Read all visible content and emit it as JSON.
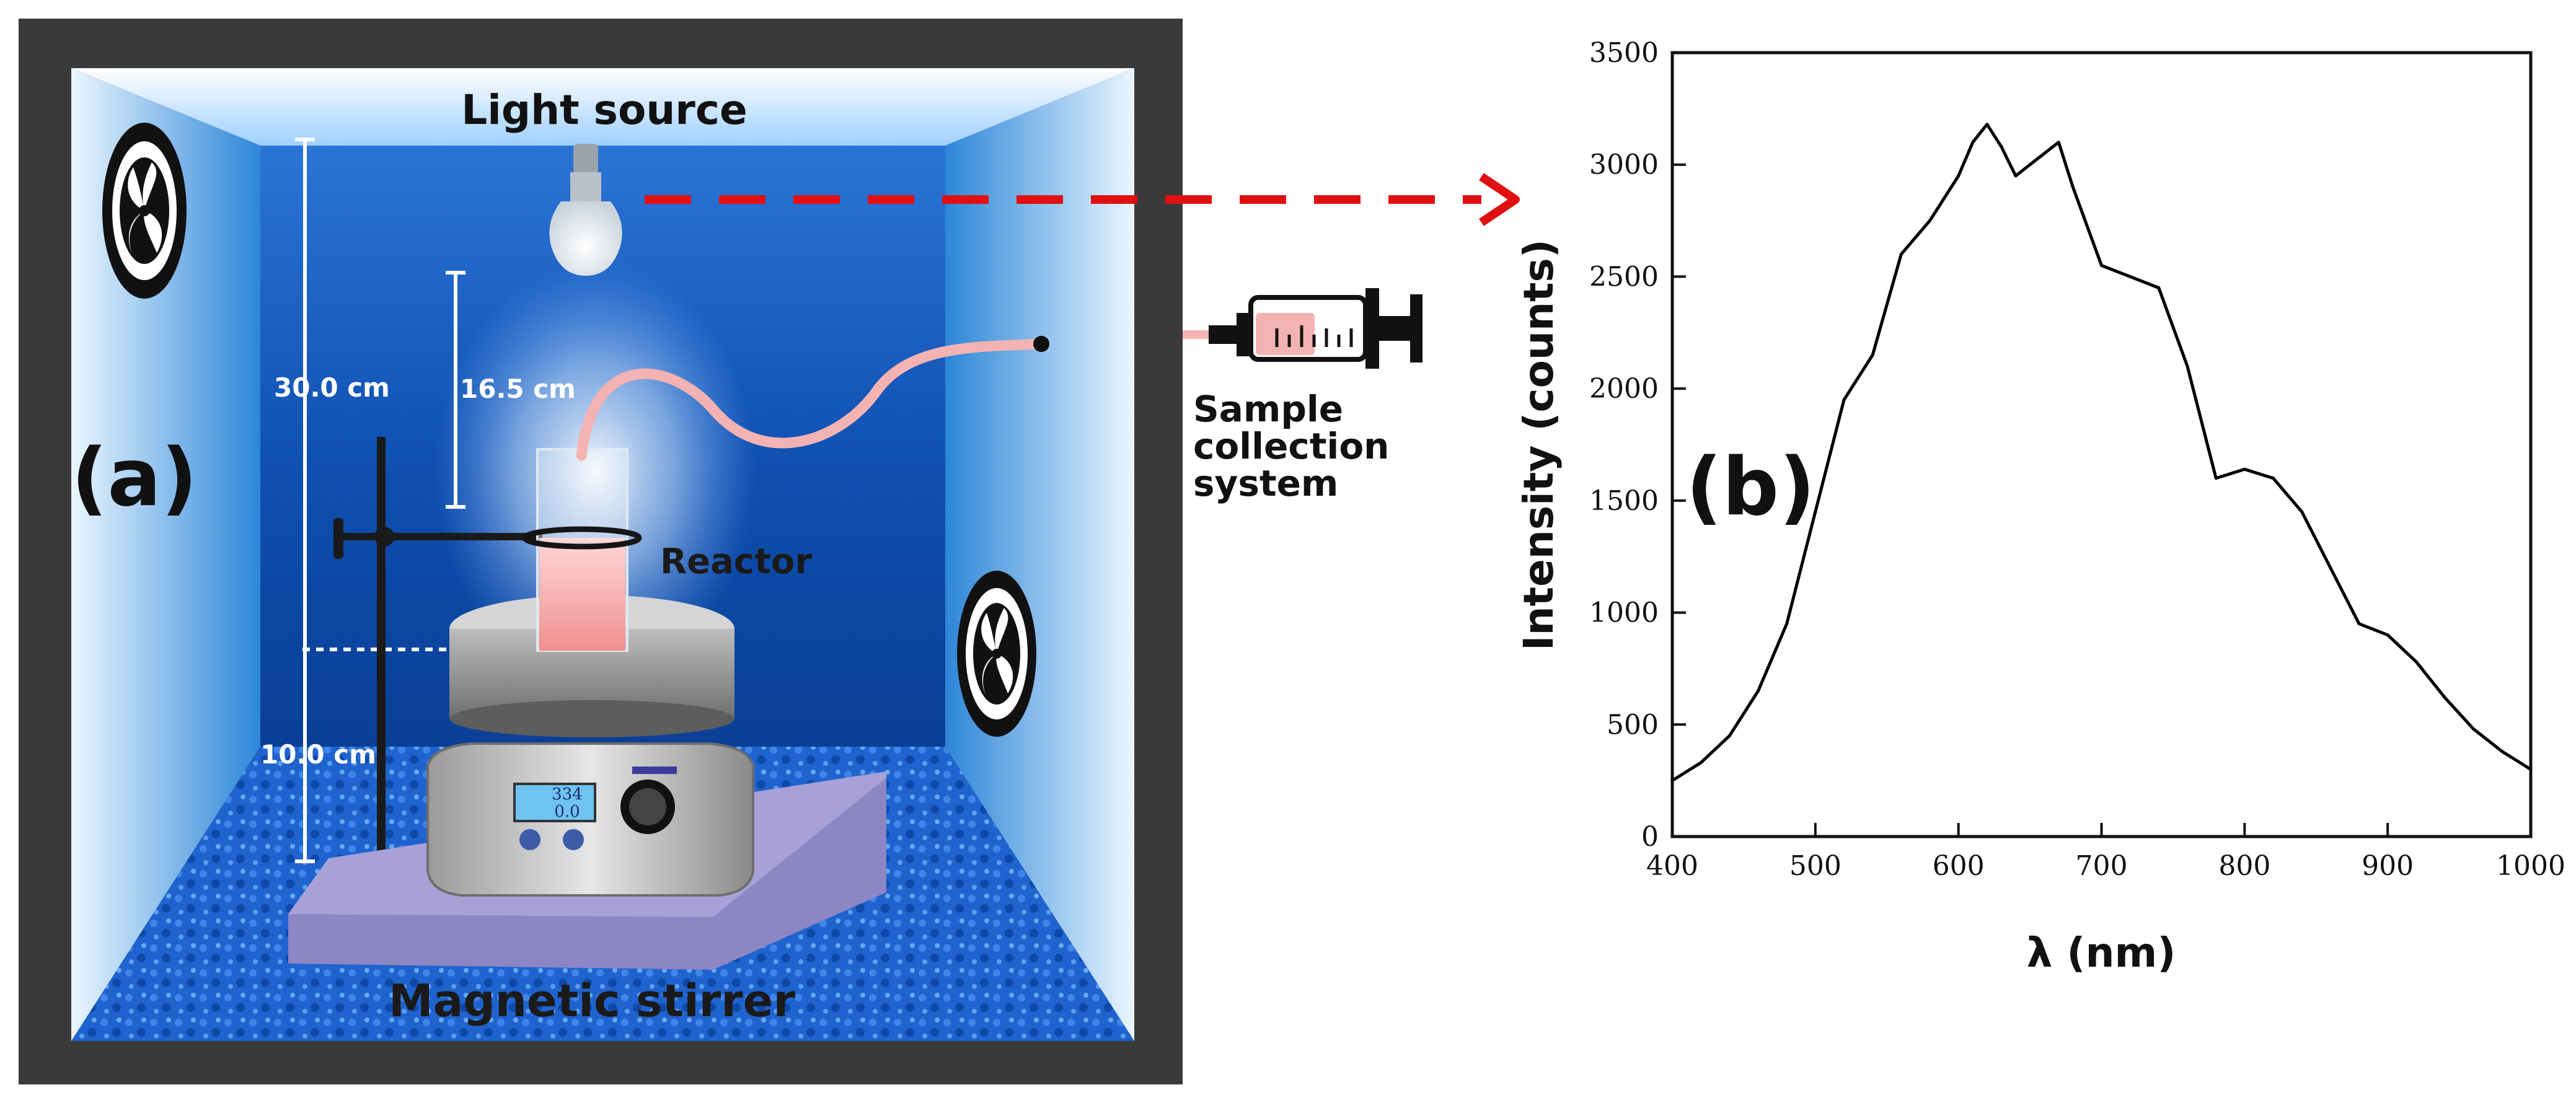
{
  "panel_a": {
    "panel_label": "(a)",
    "light_source_label": "Light source",
    "reactor_label": "Reactor",
    "magnetic_stirrer_label": "Magnetic stirrer",
    "sample_collection_label_lines": [
      "Sample",
      "collection",
      "system"
    ],
    "dimension_total": "30.0 cm",
    "dimension_light_to_reactor": "16.5 cm",
    "dimension_floor_to_reactor": "10.0 cm",
    "stirrer_display_line1": "334",
    "stirrer_display_line2": "0.0",
    "colors": {
      "frame": "#3a3a3a",
      "back_wall": "#1e5fb8",
      "floor": "#2a6fd0",
      "arrow": "#e01010",
      "tube": "#f4b3b3",
      "reactor_liquid": "#f29a9a",
      "stirrer_plate": "#8c86c4"
    },
    "icons": [
      "fan-icon",
      "lightbulb-icon",
      "syringe-icon",
      "stirrer-icon",
      "beaker-icon",
      "clamp-stand-icon"
    ]
  },
  "panel_b": {
    "panel_label": "(b)"
  },
  "chart_data": {
    "type": "line",
    "title": "",
    "xlabel": "λ (nm)",
    "ylabel": "Intensity (counts)",
    "xlim": [
      400,
      1000
    ],
    "ylim": [
      0,
      3500
    ],
    "xticks": [
      400,
      500,
      600,
      700,
      800,
      900,
      1000
    ],
    "yticks": [
      0,
      500,
      1000,
      1500,
      2000,
      2500,
      3000,
      3500
    ],
    "grid": false,
    "legend": "none",
    "series": [
      {
        "color": "#000000",
        "x": [
          400,
          420,
          440,
          460,
          480,
          500,
          520,
          540,
          560,
          580,
          600,
          610,
          620,
          630,
          640,
          650,
          660,
          670,
          680,
          700,
          720,
          740,
          760,
          780,
          800,
          820,
          840,
          860,
          880,
          900,
          920,
          940,
          960,
          980,
          1000
        ],
        "y": [
          250,
          330,
          450,
          650,
          950,
          1450,
          1950,
          2150,
          2600,
          2750,
          2950,
          3100,
          3180,
          3080,
          2950,
          3000,
          3050,
          3100,
          2900,
          2550,
          2500,
          2450,
          2100,
          1600,
          1640,
          1600,
          1450,
          1200,
          950,
          900,
          780,
          620,
          480,
          380,
          300
        ]
      }
    ]
  }
}
